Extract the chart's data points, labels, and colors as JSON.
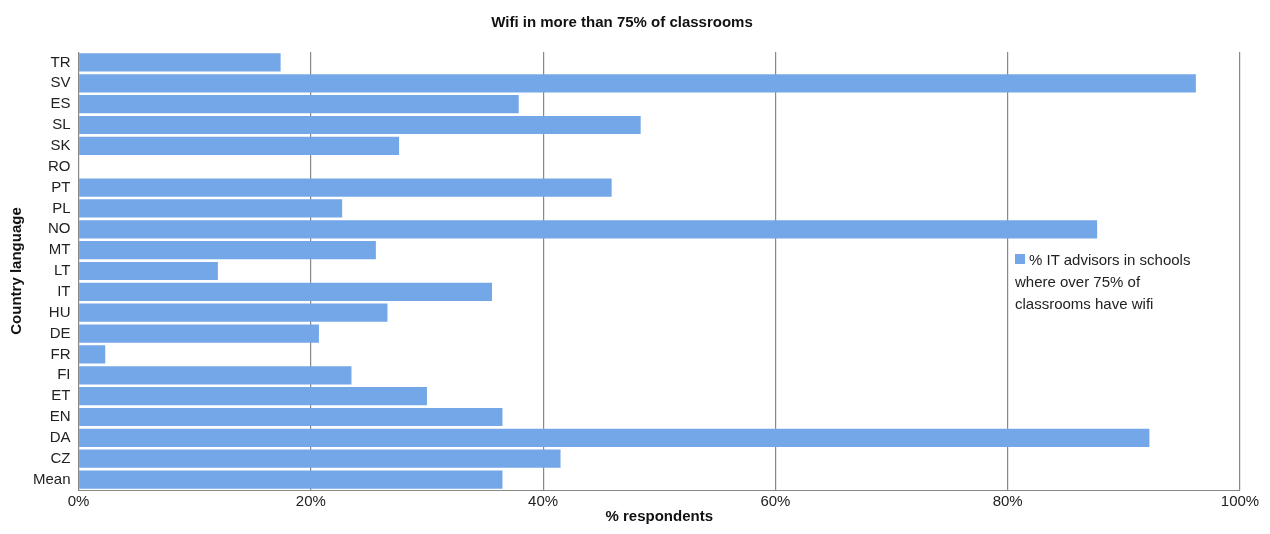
{
  "chart_data": {
    "type": "bar",
    "orientation": "horizontal",
    "title": "Wifi in more than 75% of classrooms",
    "xlabel": "% respondents",
    "ylabel": "Country language",
    "categories": [
      "TR",
      "SV",
      "ES",
      "SL",
      "SK",
      "RO",
      "PT",
      "PL",
      "NO",
      "MT",
      "LT",
      "IT",
      "HU",
      "DE",
      "FR",
      "FI",
      "ET",
      "EN",
      "DA",
      "CZ",
      "Mean"
    ],
    "series": [
      {
        "name": "% IT advisors in schools where over 75% of classrooms have wifi",
        "color": "#74a7e8",
        "values": [
          17.4,
          96.2,
          37.9,
          48.4,
          27.6,
          0,
          45.9,
          22.7,
          87.7,
          25.6,
          12.0,
          35.6,
          26.6,
          20.7,
          2.3,
          23.5,
          30.0,
          36.5,
          92.2,
          41.5,
          36.5
        ]
      }
    ],
    "xlim": [
      0,
      100
    ],
    "xticks": [
      {
        "value": 0,
        "label": "0%"
      },
      {
        "value": 20,
        "label": "20%"
      },
      {
        "value": 40,
        "label": "40%"
      },
      {
        "value": 60,
        "label": "60%"
      },
      {
        "value": 80,
        "label": "80%"
      },
      {
        "value": 100,
        "label": "100%"
      }
    ],
    "grid": "x",
    "legend": "right"
  }
}
